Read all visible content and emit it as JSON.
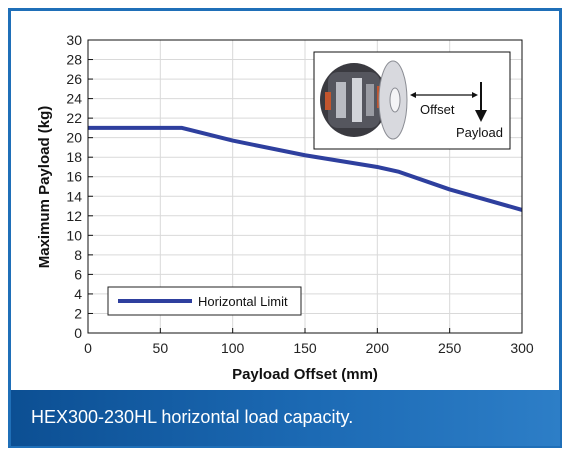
{
  "caption": "HEX300-230HL horizontal load capacity.",
  "colors": {
    "frame": "#1f6fb8",
    "series": "#2e3f9e",
    "caption_bar": "#1c6ab4"
  },
  "inset": {
    "offset_label": "Offset",
    "payload_label": "Payload",
    "image": "hexapod-photo"
  },
  "chart_data": {
    "type": "line",
    "xlabel": "Payload Offset (mm)",
    "ylabel": "Maximum Payload (kg)",
    "xlim": [
      0,
      300
    ],
    "ylim": [
      0,
      30
    ],
    "xticks": [
      0,
      50,
      100,
      150,
      200,
      250,
      300
    ],
    "yticks": [
      0,
      2,
      4,
      6,
      8,
      10,
      12,
      14,
      16,
      18,
      20,
      22,
      24,
      26,
      28,
      30
    ],
    "grid": true,
    "legend_position": "bottom-left",
    "series": [
      {
        "name": "Horizontal Limit",
        "x": [
          0,
          65,
          100,
          150,
          200,
          215,
          250,
          300
        ],
        "y": [
          21,
          21,
          19.7,
          18.2,
          17.0,
          16.5,
          14.7,
          12.6
        ]
      }
    ]
  }
}
